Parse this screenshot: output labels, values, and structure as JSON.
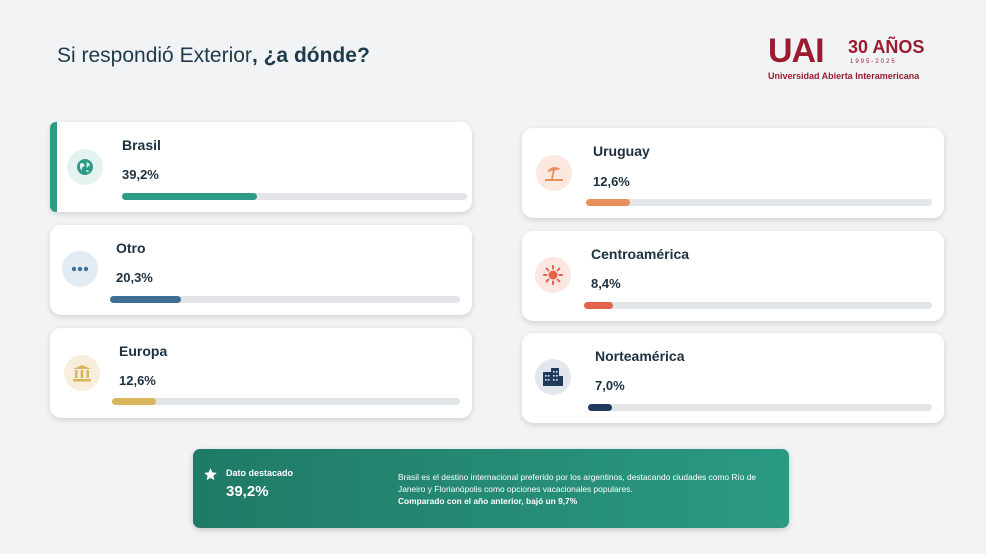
{
  "title": {
    "prefix": "Si respondió Exterior",
    "bold": ", ¿a dónde?"
  },
  "logo": {
    "mark": "UAI",
    "years": "30 AÑOS",
    "range": "1995-2025",
    "name": "Universidad Abierta Interamericana"
  },
  "destinations": [
    {
      "label": "Brasil",
      "value": "39,2%",
      "fraction": 0.392,
      "icon": "globe-icon",
      "color": "#2e9b86",
      "bg": "#e3f3ef"
    },
    {
      "label": "Otro",
      "value": "20,3%",
      "fraction": 0.203,
      "icon": "more-icon",
      "color": "#3f6f97",
      "bg": "#e4ecf3"
    },
    {
      "label": "Europa",
      "value": "12,6%",
      "fraction": 0.126,
      "icon": "landmark-icon",
      "color": "#d9b45a",
      "bg": "#f7efdb"
    },
    {
      "label": "Uruguay",
      "value": "12,6%",
      "fraction": 0.126,
      "icon": "umbrella-beach-icon",
      "color": "#e98f5c",
      "bg": "#fbe9df"
    },
    {
      "label": "Centroamérica",
      "value": "8,4%",
      "fraction": 0.084,
      "icon": "sun-icon",
      "color": "#e2624a",
      "bg": "#fbe6e2"
    },
    {
      "label": "Norteamérica",
      "value": "7,0%",
      "fraction": 0.07,
      "icon": "city-icon",
      "color": "#1f3a5c",
      "bg": "#e2e7ee"
    }
  ],
  "highlight": {
    "label": "Dato destacado",
    "value": "39,2%",
    "description": "Brasil es el destino internacional preferido por los argentinos, destacando ciudades como Río de Janeiro y Florianópolis como opciones vacacionales populares.",
    "note": "Comparado con el año anterior, bajó un 9,7%"
  }
}
